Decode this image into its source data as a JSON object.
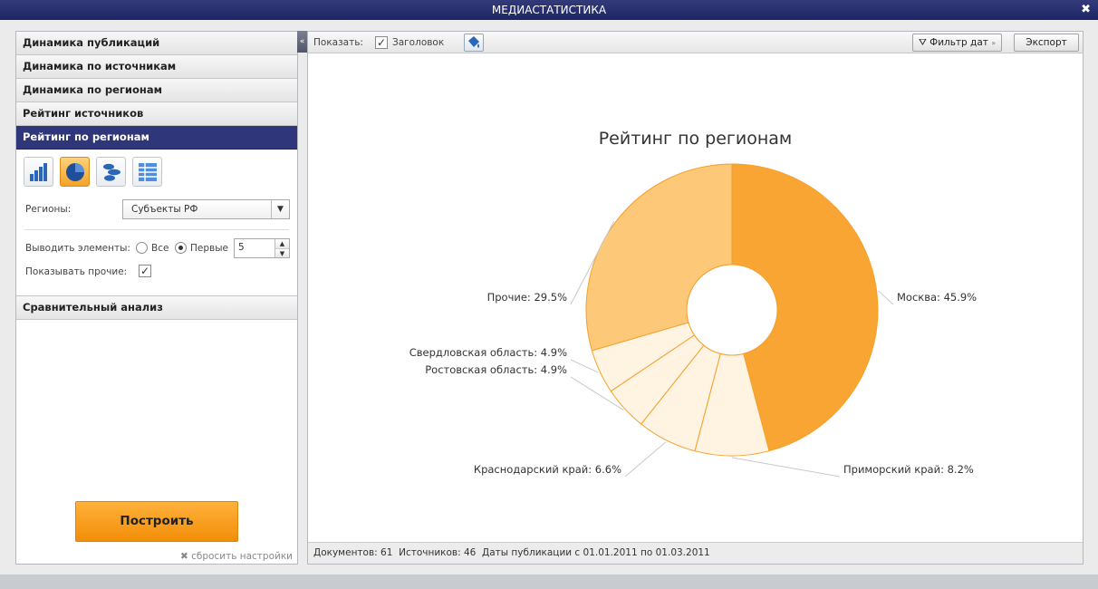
{
  "window": {
    "title": "МЕДИАСТАТИСТИКА",
    "close_glyph": "✖"
  },
  "sidebar": {
    "sections": [
      {
        "label": "Динамика публикаций"
      },
      {
        "label": "Динамика по источникам"
      },
      {
        "label": "Динамика по регионам"
      },
      {
        "label": "Рейтинг источников"
      },
      {
        "label": "Рейтинг по регионам",
        "active": true
      }
    ],
    "chart_types": [
      "bar-chart-icon",
      "pie-chart-icon",
      "bubble-chart-icon",
      "table-icon"
    ],
    "selected_chart_type": "pie-chart-icon",
    "regions_label": "Регионы:",
    "regions_value": "Субъекты РФ",
    "output_label": "Выводить элементы:",
    "option_all": "Все",
    "option_first": "Первые",
    "first_count": "5",
    "show_other_label": "Показывать прочие:",
    "show_other_checked": true,
    "comparative_label": "Сравнительный анализ",
    "collapse_glyph": "«",
    "build_label": "Построить",
    "reset_label": "сбросить настройки"
  },
  "toolbar": {
    "show_label": "Показать:",
    "title_checkbox_label": "Заголовок",
    "title_checked": true,
    "date_filter_label": "Фильтр дат",
    "export_label": "Экспорт"
  },
  "status": {
    "documents": "Документов: 61",
    "sources": "Источников: 46",
    "dates": "Даты публикации с 01.01.2011 по 01.03.2011"
  },
  "colors": {
    "primary": "#2f367a",
    "accent": "#f7a738"
  },
  "chart_data": {
    "type": "pie",
    "donut": true,
    "title": "Рейтинг по регионам",
    "categories": [
      "Москва",
      "Приморский край",
      "Краснодарский край",
      "Ростовская область",
      "Свердловская область",
      "Прочие"
    ],
    "values": [
      45.9,
      8.2,
      6.6,
      4.9,
      4.9,
      29.5
    ],
    "labels": [
      "Москва: 45.9%",
      "Приморский край: 8.2%",
      "Краснодарский край: 6.6%",
      "Ростовская область: 4.9%",
      "Свердловская область: 4.9%",
      "Прочие: 29.5%"
    ]
  }
}
